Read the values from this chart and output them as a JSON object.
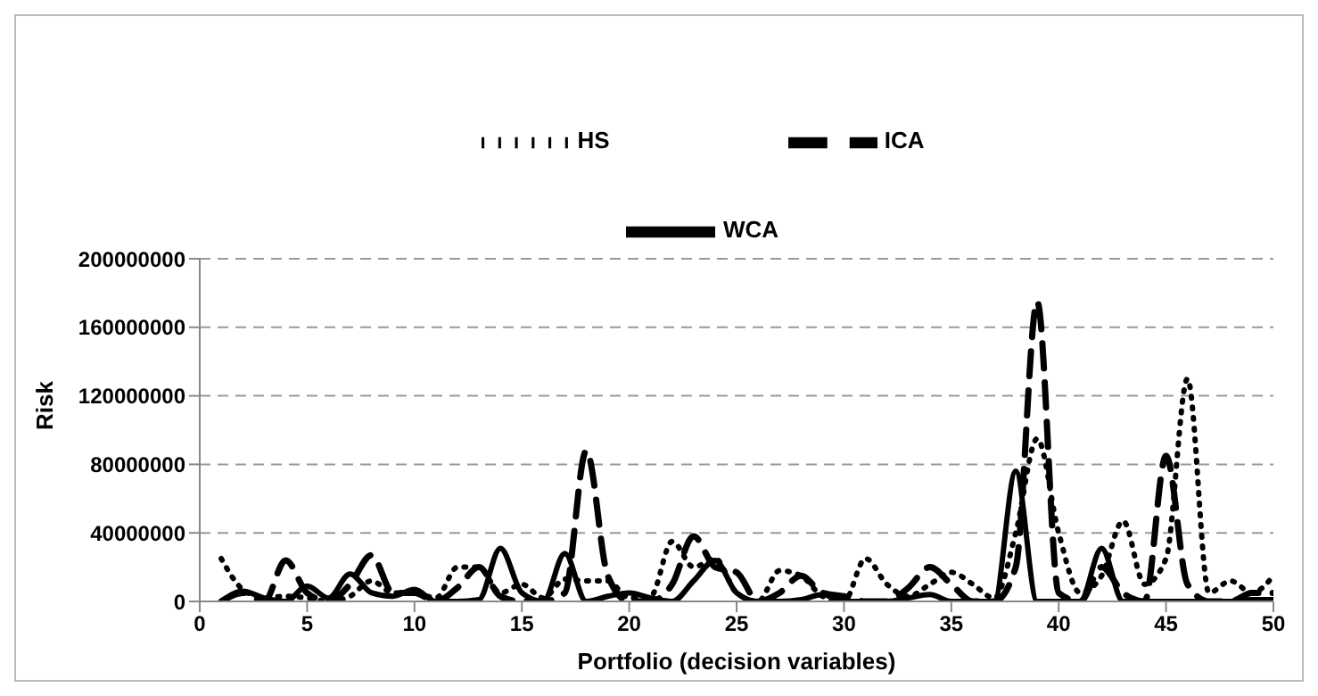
{
  "chart_data": {
    "type": "line",
    "xlabel": "Portfolio (decision variables)",
    "ylabel": "Risk",
    "x": [
      1,
      2,
      3,
      4,
      5,
      6,
      7,
      8,
      9,
      10,
      11,
      12,
      13,
      14,
      15,
      16,
      17,
      18,
      19,
      20,
      21,
      22,
      23,
      24,
      25,
      26,
      27,
      28,
      29,
      30,
      31,
      32,
      33,
      34,
      35,
      36,
      37,
      38,
      39,
      40,
      41,
      42,
      43,
      44,
      45,
      46,
      47,
      48,
      49,
      50
    ],
    "xlim": [
      0,
      50
    ],
    "xticks": [
      0,
      5,
      10,
      15,
      20,
      25,
      30,
      35,
      40,
      45,
      50
    ],
    "ylim": [
      0,
      200000000
    ],
    "yticks": [
      0,
      40000000,
      80000000,
      120000000,
      160000000,
      200000000
    ],
    "grid": "y",
    "legend": "top",
    "marker": "none",
    "series": [
      {
        "name": "WCA",
        "color": "#000000",
        "line_style": "solid",
        "values": [
          0,
          6000000,
          2000000,
          0,
          9000000,
          2000000,
          16000000,
          5000000,
          3000000,
          7000000,
          0,
          0,
          1000000,
          31000000,
          5000000,
          0,
          28000000,
          0,
          3000000,
          5000000,
          2000000,
          0,
          12000000,
          24000000,
          5000000,
          0,
          0,
          1000000,
          4000000,
          0,
          0,
          0,
          2000000,
          4000000,
          0,
          0,
          0,
          76000000,
          0,
          0,
          0,
          31000000,
          0,
          0,
          0,
          0,
          0,
          0,
          1000000,
          1000000
        ]
      },
      {
        "name": "ICA",
        "color": "#000000",
        "line_style": "dashed",
        "values": [
          0,
          5000000,
          0,
          24000000,
          5000000,
          0,
          10000000,
          27000000,
          5000000,
          5000000,
          0,
          8000000,
          20000000,
          3000000,
          0,
          0,
          5000000,
          88000000,
          15000000,
          0,
          0,
          10000000,
          38000000,
          20000000,
          17000000,
          0,
          5000000,
          15000000,
          5000000,
          3000000,
          0,
          0,
          8000000,
          20000000,
          10000000,
          0,
          0,
          20000000,
          175000000,
          5000000,
          0,
          20000000,
          5000000,
          0,
          85000000,
          10000000,
          0,
          0,
          5000000,
          5000000
        ]
      },
      {
        "name": "HS",
        "color": "#000000",
        "line_style": "dotted",
        "values": [
          25000000,
          7000000,
          2000000,
          3000000,
          2000000,
          0,
          3000000,
          12000000,
          5000000,
          5000000,
          2000000,
          20000000,
          20000000,
          5000000,
          10000000,
          2000000,
          13000000,
          12000000,
          12000000,
          2000000,
          3000000,
          35000000,
          20000000,
          25000000,
          5000000,
          0,
          18000000,
          15000000,
          3000000,
          0,
          25000000,
          10000000,
          3000000,
          10000000,
          17000000,
          10000000,
          2000000,
          40000000,
          95000000,
          40000000,
          5000000,
          15000000,
          47000000,
          10000000,
          25000000,
          130000000,
          5000000,
          12000000,
          5000000,
          15000000
        ]
      }
    ]
  }
}
